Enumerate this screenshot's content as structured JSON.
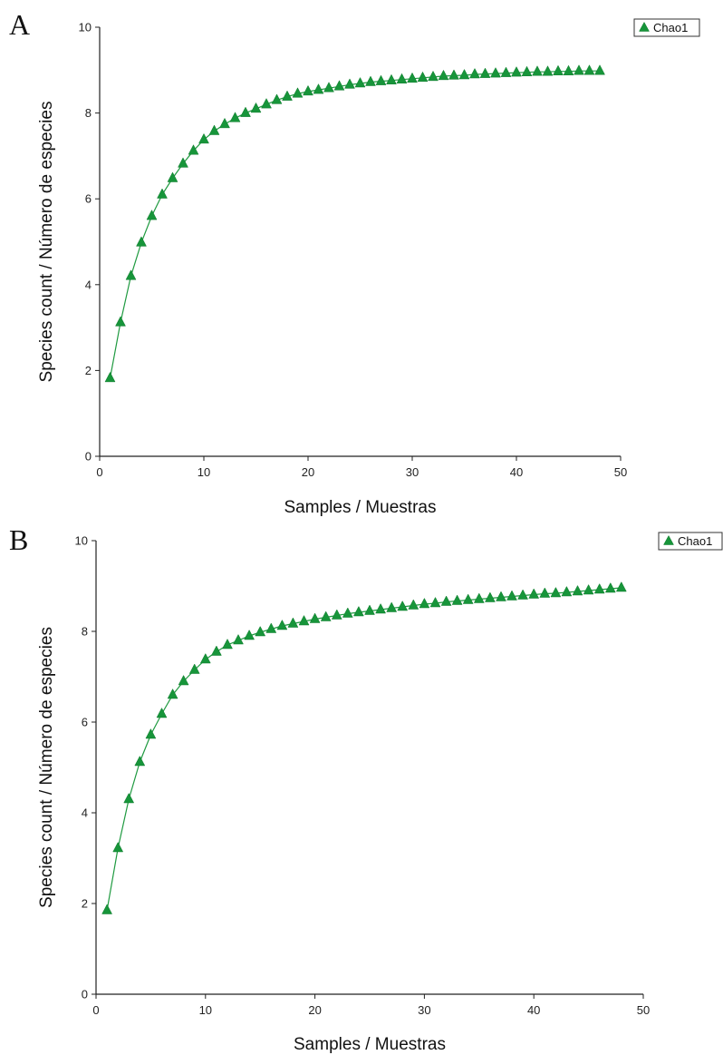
{
  "chart_data": [
    {
      "type": "line",
      "panel_label": "A",
      "xlabel": "Samples / Muestras",
      "ylabel": "Species count / Número de especies",
      "xlim": [
        0,
        50
      ],
      "ylim": [
        0,
        10
      ],
      "xticks": [
        0,
        10,
        20,
        30,
        40,
        50
      ],
      "yticks": [
        0,
        2,
        4,
        6,
        8,
        10
      ],
      "grid": false,
      "legend_position": "top-right",
      "series": [
        {
          "name": "Chao1",
          "color": "#17953a",
          "marker": "triangle",
          "x": [
            1,
            2,
            3,
            4,
            5,
            6,
            7,
            8,
            9,
            10,
            11,
            12,
            13,
            14,
            15,
            16,
            17,
            18,
            19,
            20,
            21,
            22,
            23,
            24,
            25,
            26,
            27,
            28,
            29,
            30,
            31,
            32,
            33,
            34,
            35,
            36,
            37,
            38,
            39,
            40,
            41,
            42,
            43,
            44,
            45,
            46,
            47,
            48
          ],
          "values": [
            1.82,
            3.12,
            4.2,
            4.98,
            5.6,
            6.1,
            6.48,
            6.82,
            7.12,
            7.38,
            7.58,
            7.74,
            7.88,
            8.0,
            8.1,
            8.2,
            8.3,
            8.38,
            8.45,
            8.5,
            8.54,
            8.58,
            8.62,
            8.66,
            8.69,
            8.72,
            8.74,
            8.76,
            8.78,
            8.8,
            8.82,
            8.84,
            8.86,
            8.87,
            8.88,
            8.9,
            8.91,
            8.92,
            8.93,
            8.94,
            8.95,
            8.96,
            8.96,
            8.97,
            8.97,
            8.98,
            8.98,
            8.98
          ]
        }
      ]
    },
    {
      "type": "line",
      "panel_label": "B",
      "xlabel": "Samples / Muestras",
      "ylabel": "Species count / Número de especies",
      "xlim": [
        0,
        50
      ],
      "ylim": [
        0,
        10
      ],
      "xticks": [
        0,
        10,
        20,
        30,
        40,
        50
      ],
      "yticks": [
        0,
        2,
        4,
        6,
        8,
        10
      ],
      "grid": false,
      "legend_position": "top-right",
      "series": [
        {
          "name": "Chao1",
          "color": "#17953a",
          "marker": "triangle",
          "x": [
            1,
            2,
            3,
            4,
            5,
            6,
            7,
            8,
            9,
            10,
            11,
            12,
            13,
            14,
            15,
            16,
            17,
            18,
            19,
            20,
            21,
            22,
            23,
            24,
            25,
            26,
            27,
            28,
            29,
            30,
            31,
            32,
            33,
            34,
            35,
            36,
            37,
            38,
            39,
            40,
            41,
            42,
            43,
            44,
            45,
            46,
            47,
            48
          ],
          "values": [
            1.85,
            3.22,
            4.3,
            5.12,
            5.72,
            6.18,
            6.6,
            6.9,
            7.15,
            7.38,
            7.55,
            7.7,
            7.8,
            7.9,
            7.98,
            8.05,
            8.12,
            8.17,
            8.22,
            8.27,
            8.31,
            8.35,
            8.39,
            8.42,
            8.45,
            8.48,
            8.51,
            8.54,
            8.57,
            8.6,
            8.62,
            8.65,
            8.67,
            8.69,
            8.71,
            8.73,
            8.75,
            8.77,
            8.79,
            8.81,
            8.83,
            8.84,
            8.86,
            8.88,
            8.9,
            8.92,
            8.94,
            8.96
          ]
        }
      ]
    }
  ]
}
